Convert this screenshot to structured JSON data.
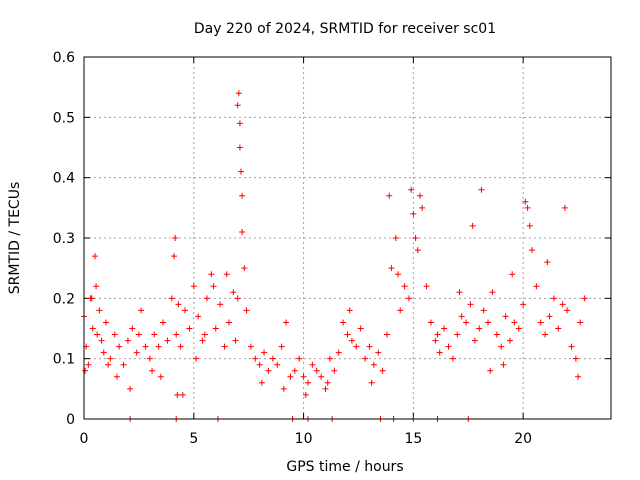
{
  "chart_data": {
    "type": "scatter",
    "title": "Day 220 of 2024, SRMTID for receiver sc01",
    "xlabel": "GPS time / hours",
    "ylabel": "SRMTID / TECUs",
    "xlim": [
      0,
      24
    ],
    "ylim": [
      0,
      0.6
    ],
    "xticks": [
      0,
      5,
      10,
      15,
      20
    ],
    "xtick_labels": [
      "0",
      "5",
      "10",
      "15",
      "20"
    ],
    "yticks": [
      0,
      0.1,
      0.2,
      0.3,
      0.4,
      0.5,
      0.6
    ],
    "ytick_labels": [
      "0",
      "0.1",
      "0.2",
      "0.3",
      "0.4",
      "0.5",
      "0.6"
    ],
    "grid": true,
    "marker": "+",
    "color": "#ff0000",
    "series": [
      {
        "name": "SRMTID",
        "x": [
          0.0,
          0.1,
          0.2,
          0.3,
          0.4,
          0.5,
          0.6,
          0.7,
          0.8,
          0.9,
          1.0,
          1.2,
          1.4,
          1.6,
          1.8,
          2.0,
          2.2,
          2.4,
          2.6,
          2.8,
          3.0,
          3.2,
          3.4,
          3.6,
          3.8,
          4.0,
          4.1,
          4.2,
          4.3,
          4.4,
          4.6,
          4.8,
          5.0,
          5.2,
          5.4,
          5.6,
          5.8,
          6.0,
          6.2,
          6.4,
          6.6,
          6.8,
          6.9,
          7.0,
          7.05,
          7.1,
          7.15,
          7.2,
          7.3,
          7.4,
          7.6,
          7.8,
          8.0,
          8.2,
          8.4,
          8.6,
          8.8,
          9.0,
          9.2,
          9.4,
          9.6,
          9.8,
          10.0,
          10.2,
          10.4,
          10.6,
          10.8,
          11.0,
          11.2,
          11.4,
          11.6,
          11.8,
          12.0,
          12.2,
          12.4,
          12.6,
          12.8,
          13.0,
          13.2,
          13.4,
          13.6,
          13.8,
          14.0,
          14.2,
          14.4,
          14.6,
          14.8,
          15.0,
          15.2,
          15.4,
          15.6,
          15.8,
          16.0,
          16.2,
          16.4,
          16.6,
          16.8,
          17.0,
          17.2,
          17.4,
          17.6,
          17.8,
          18.0,
          18.2,
          18.4,
          18.6,
          18.8,
          19.0,
          19.2,
          19.4,
          19.6,
          19.8,
          20.0,
          20.2,
          20.4,
          20.6,
          20.8,
          21.0,
          21.2,
          21.4,
          21.6,
          21.8,
          22.0,
          22.2,
          22.4,
          22.6,
          22.8,
          0.05,
          0.35,
          0.55,
          1.1,
          1.5,
          2.1,
          2.5,
          3.1,
          3.5,
          4.15,
          4.5,
          5.1,
          5.5,
          5.9,
          6.5,
          7.0,
          7.1,
          7.2,
          8.1,
          9.1,
          10.1,
          11.1,
          12.1,
          13.1,
          13.9,
          14.3,
          14.9,
          15.1,
          15.3,
          16.1,
          17.1,
          17.7,
          18.1,
          18.5,
          19.1,
          19.5,
          20.1,
          20.3,
          21.1,
          21.9,
          22.5,
          2.1,
          4.2,
          4.25,
          6.1,
          9.5,
          10.2,
          11.3,
          13.5,
          14.1,
          15.0,
          16.1,
          17.5
        ],
        "y": [
          0.17,
          0.12,
          0.09,
          0.2,
          0.15,
          0.27,
          0.14,
          0.18,
          0.13,
          0.11,
          0.16,
          0.1,
          0.14,
          0.12,
          0.09,
          0.13,
          0.15,
          0.11,
          0.18,
          0.12,
          0.1,
          0.14,
          0.12,
          0.16,
          0.13,
          0.2,
          0.27,
          0.14,
          0.19,
          0.12,
          0.18,
          0.15,
          0.22,
          0.17,
          0.13,
          0.2,
          0.24,
          0.15,
          0.19,
          0.12,
          0.16,
          0.21,
          0.13,
          0.2,
          0.54,
          0.49,
          0.41,
          0.31,
          0.25,
          0.18,
          0.12,
          0.1,
          0.09,
          0.11,
          0.08,
          0.1,
          0.09,
          0.12,
          0.16,
          0.07,
          0.08,
          0.1,
          0.07,
          0.06,
          0.09,
          0.08,
          0.07,
          0.05,
          0.1,
          0.08,
          0.11,
          0.16,
          0.14,
          0.13,
          0.12,
          0.15,
          0.1,
          0.12,
          0.09,
          0.11,
          0.08,
          0.14,
          0.25,
          0.3,
          0.18,
          0.22,
          0.2,
          0.34,
          0.28,
          0.35,
          0.22,
          0.16,
          0.13,
          0.11,
          0.15,
          0.12,
          0.1,
          0.14,
          0.17,
          0.16,
          0.19,
          0.13,
          0.15,
          0.18,
          0.16,
          0.21,
          0.14,
          0.12,
          0.17,
          0.13,
          0.16,
          0.15,
          0.19,
          0.35,
          0.28,
          0.22,
          0.16,
          0.14,
          0.17,
          0.2,
          0.15,
          0.19,
          0.18,
          0.12,
          0.1,
          0.16,
          0.2,
          0.08,
          0.2,
          0.22,
          0.09,
          0.07,
          0.05,
          0.14,
          0.08,
          0.07,
          0.3,
          0.04,
          0.1,
          0.14,
          0.22,
          0.24,
          0.52,
          0.45,
          0.37,
          0.06,
          0.05,
          0.04,
          0.06,
          0.18,
          0.06,
          0.37,
          0.24,
          0.38,
          0.3,
          0.37,
          0.14,
          0.21,
          0.32,
          0.38,
          0.08,
          0.09,
          0.24,
          0.36,
          0.32,
          0.26,
          0.35,
          0.07,
          0.0,
          0.0,
          0.04,
          0.0,
          0.0,
          0.0,
          0.0,
          0.0,
          0.0,
          0.0,
          0.0,
          0.0
        ]
      }
    ]
  }
}
